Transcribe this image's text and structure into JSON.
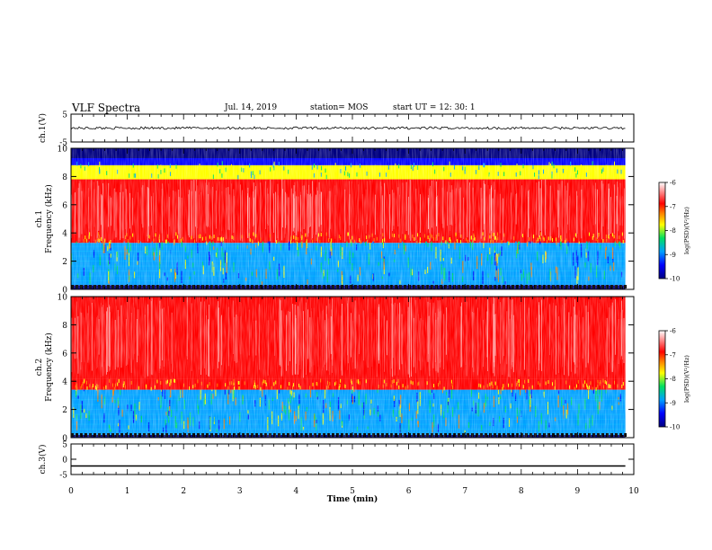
{
  "header": {
    "title": "VLF Spectra",
    "date": "Jul. 14, 2019",
    "station": "station= MOS",
    "start": "start UT =  12: 30: 1"
  },
  "colors": {
    "colormap": [
      "#000080",
      "#0000ff",
      "#00a0ff",
      "#00e060",
      "#ffff00",
      "#ff8000",
      "#ff0000",
      "#ffffff"
    ]
  },
  "chart_data": [
    {
      "type": "line",
      "ylabel": "ch.1(V)",
      "ylim": [
        -5,
        5
      ],
      "yticks": [
        "5",
        "-5"
      ],
      "x": [
        0,
        9.85
      ],
      "values": [
        0,
        0
      ],
      "note": ""
    },
    {
      "type": "heatmap",
      "ylabel": "ch.1 Frequency (kHz)",
      "xlim": [
        0,
        10
      ],
      "ylim": [
        0,
        10
      ],
      "yticks": [
        "0",
        "2",
        "4",
        "6",
        "8",
        "10"
      ],
      "colorbar": {
        "label": "log(PSD)(V²/Hz)",
        "ticks": [
          "-6",
          "-7",
          "-8",
          "-9",
          "-10"
        ],
        "range": [
          -10,
          -6
        ]
      },
      "bands": [
        {
          "f_low": 0,
          "f_high": 0.3,
          "level": -10
        },
        {
          "f_low": 0.3,
          "f_high": 3.3,
          "level": -8.6
        },
        {
          "f_low": 3.3,
          "f_high": 7.8,
          "level": -6.3
        },
        {
          "f_low": 7.8,
          "f_high": 8.8,
          "level": -7.6
        },
        {
          "f_low": 8.8,
          "f_high": 9.3,
          "level": -9.3
        },
        {
          "f_low": 9.3,
          "f_high": 10,
          "level": -10
        }
      ]
    },
    {
      "type": "heatmap",
      "ylabel": "ch.2 Frequency (kHz)",
      "xlim": [
        0,
        10
      ],
      "ylim": [
        0,
        10
      ],
      "yticks": [
        "0",
        "2",
        "4",
        "6",
        "8",
        "10"
      ],
      "colorbar": {
        "label": "log(PSD)(V²/Hz)",
        "ticks": [
          "-6",
          "-7",
          "-8",
          "-9",
          "-10"
        ],
        "range": [
          -10,
          -6
        ]
      },
      "bands": [
        {
          "f_low": 0,
          "f_high": 0.2,
          "level": -10
        },
        {
          "f_low": 0.2,
          "f_high": 3.4,
          "level": -8.7
        },
        {
          "f_low": 3.4,
          "f_high": 4.2,
          "level": -6.5
        },
        {
          "f_low": 4.2,
          "f_high": 10,
          "level": -6.0
        }
      ]
    },
    {
      "type": "line",
      "ylabel": "ch.3(V)",
      "xlabel": "Time (min)",
      "ylim": [
        -5,
        5
      ],
      "yticks": [
        "5",
        "0",
        "-5"
      ],
      "xticks": [
        "0",
        "1",
        "2",
        "3",
        "4",
        "5",
        "6",
        "7",
        "8",
        "9",
        "10"
      ],
      "xlim": [
        0,
        10
      ],
      "x": [
        0,
        9.85
      ],
      "values": [
        -2.2,
        -2.2
      ]
    }
  ]
}
